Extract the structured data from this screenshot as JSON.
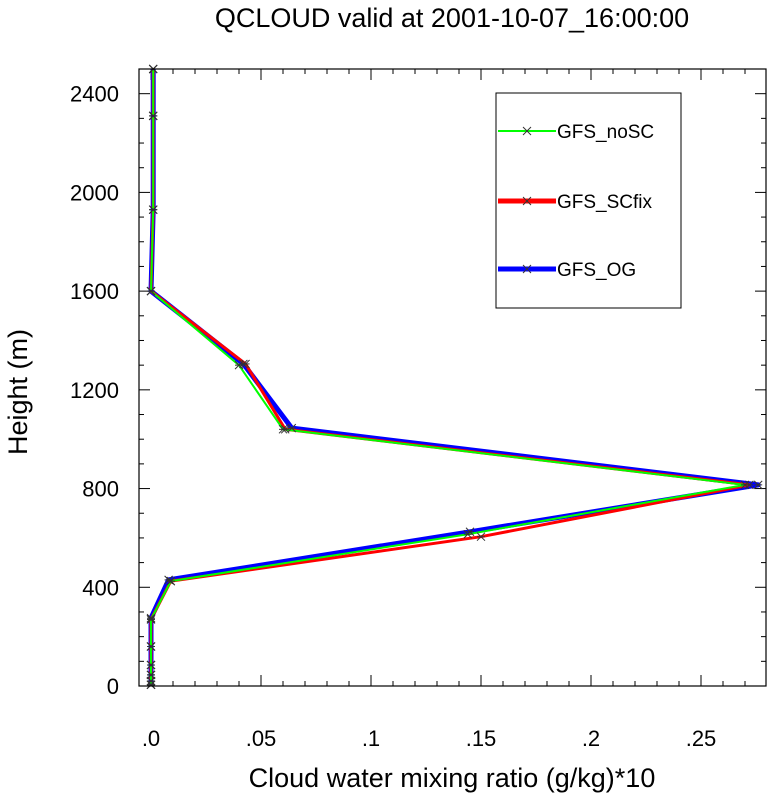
{
  "chart_data": {
    "type": "line",
    "title": "QCLOUD valid at 2001-10-07_16:00:00",
    "xlabel": "Cloud water mixing ratio (g/kg)*10",
    "ylabel": "Height (m)",
    "xlim": [
      0,
      0.28
    ],
    "ylim": [
      0,
      2500
    ],
    "x_ticks": [
      0,
      0.05,
      0.1,
      0.15,
      0.2,
      0.25
    ],
    "x_tick_labels": [
      ".0",
      ".05",
      ".1",
      ".15",
      ".2",
      ".25"
    ],
    "y_ticks": [
      0,
      400,
      800,
      1200,
      1600,
      2000,
      2400
    ],
    "y_tick_labels": [
      "0",
      "400",
      "800",
      "1200",
      "1600",
      "2000",
      "2400"
    ],
    "legend_position": "top-right",
    "series": [
      {
        "name": "GFS_noSC",
        "color": "#00ff00",
        "points": [
          [
            0,
            5
          ],
          [
            0,
            20
          ],
          [
            0,
            45
          ],
          [
            0,
            85
          ],
          [
            0,
            160
          ],
          [
            0,
            270
          ],
          [
            0.009,
            425
          ],
          [
            0.144,
            615
          ],
          [
            0.27,
            815
          ],
          [
            0.06,
            1040
          ],
          [
            0.04,
            1300
          ],
          [
            0,
            1600
          ],
          [
            0.001,
            1930
          ],
          [
            0.001,
            2310
          ],
          [
            0.001,
            2500
          ]
        ]
      },
      {
        "name": "GFS_SCfix",
        "color": "#ff0000",
        "points": [
          [
            0,
            5
          ],
          [
            0,
            20
          ],
          [
            0,
            45
          ],
          [
            0,
            85
          ],
          [
            0,
            160
          ],
          [
            0,
            270
          ],
          [
            0.009,
            425
          ],
          [
            0.15,
            605
          ],
          [
            0.272,
            815
          ],
          [
            0.061,
            1040
          ],
          [
            0.043,
            1305
          ],
          [
            0,
            1600
          ],
          [
            0.001,
            1930
          ],
          [
            0.001,
            2310
          ],
          [
            0.001,
            2500
          ]
        ]
      },
      {
        "name": "GFS_OG",
        "color": "#0000ff",
        "points": [
          [
            0,
            5
          ],
          [
            0,
            20
          ],
          [
            0,
            45
          ],
          [
            0,
            85
          ],
          [
            0,
            160
          ],
          [
            0,
            275
          ],
          [
            0.008,
            430
          ],
          [
            0.145,
            625
          ],
          [
            0.276,
            815
          ],
          [
            0.064,
            1045
          ],
          [
            0.042,
            1305
          ],
          [
            0,
            1600
          ],
          [
            0.001,
            1930
          ],
          [
            0.001,
            2310
          ],
          [
            0.001,
            2500
          ]
        ]
      }
    ]
  }
}
